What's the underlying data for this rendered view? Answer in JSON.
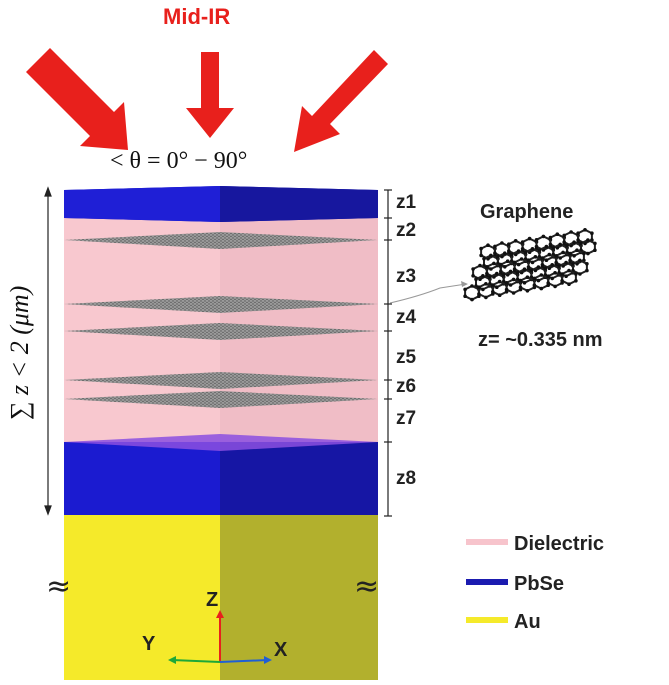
{
  "incident": {
    "label": "Mid-IR",
    "angle_text": "< θ = 0° − 90°",
    "arrow_color": "#e8201c"
  },
  "stack": {
    "thickness_label": "∑ z < 2 (μm)",
    "layers": [
      "z1",
      "z2",
      "z3",
      "z4",
      "z5",
      "z6",
      "z7",
      "z8"
    ],
    "semi_infinite_mark": "≈"
  },
  "graphene": {
    "title": "Graphene",
    "thickness": "z= ~0.335 nm"
  },
  "legend": [
    {
      "label": "Dielectric",
      "color": "#f7c4cc"
    },
    {
      "label": "PbSe",
      "color": "#1b1bb0"
    },
    {
      "label": "Au",
      "color": "#f5ea2a"
    }
  ],
  "axes": {
    "z": "Z",
    "y": "Y",
    "x": "X"
  }
}
